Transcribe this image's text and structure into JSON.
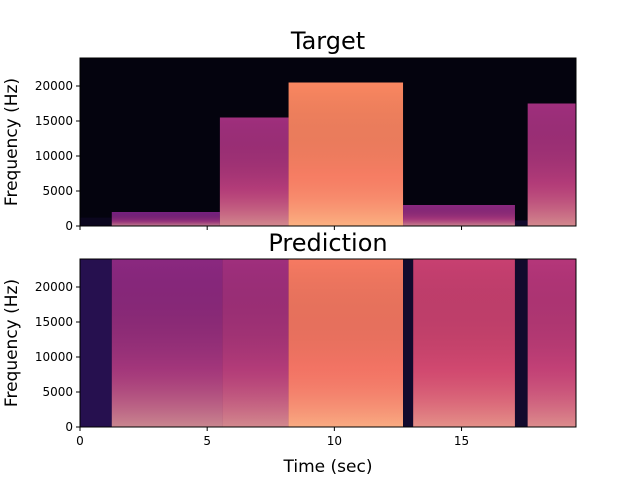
{
  "chart_data": [
    {
      "type": "heatmap",
      "title": "Target",
      "xlabel": "",
      "ylabel": "Frequency (Hz)",
      "xlim": [
        0,
        19.5
      ],
      "ylim": [
        0,
        24000
      ],
      "x_ticks": [
        0,
        5,
        10,
        15
      ],
      "x_tick_labels_shown": false,
      "y_ticks": [
        0,
        5000,
        10000,
        15000,
        20000
      ],
      "y_tick_labels": [
        "0",
        "5000",
        "10000",
        "15000",
        "20000"
      ],
      "colormap": "magma",
      "segments": [
        {
          "x0": 0.0,
          "x1": 1.25,
          "max_freq": 1200,
          "level": 0.05
        },
        {
          "x0": 1.25,
          "x1": 5.5,
          "max_freq": 2000,
          "level": 0.35
        },
        {
          "x0": 5.5,
          "x1": 8.2,
          "max_freq": 15500,
          "level": 0.45
        },
        {
          "x0": 8.2,
          "x1": 12.7,
          "max_freq": 20500,
          "level": 0.75
        },
        {
          "x0": 12.7,
          "x1": 17.1,
          "max_freq": 3000,
          "level": 0.4
        },
        {
          "x0": 17.1,
          "x1": 17.6,
          "max_freq": 800,
          "level": 0.08
        },
        {
          "x0": 17.6,
          "x1": 19.5,
          "max_freq": 17500,
          "level": 0.45
        }
      ]
    },
    {
      "type": "heatmap",
      "title": "Prediction",
      "xlabel": "Time (sec)",
      "ylabel": "Frequency (Hz)",
      "xlim": [
        0,
        19.5
      ],
      "ylim": [
        0,
        24000
      ],
      "x_ticks": [
        0,
        5,
        10,
        15
      ],
      "x_tick_labels": [
        "0",
        "5",
        "10",
        "15"
      ],
      "y_ticks": [
        0,
        5000,
        10000,
        15000,
        20000
      ],
      "y_tick_labels": [
        "0",
        "5000",
        "10000",
        "15000",
        "20000"
      ],
      "colormap": "magma",
      "segments": [
        {
          "x0": 0.0,
          "x1": 1.25,
          "max_freq": 24000,
          "level": 0.15
        },
        {
          "x0": 1.25,
          "x1": 5.6,
          "max_freq": 24000,
          "level": 0.4
        },
        {
          "x0": 5.6,
          "x1": 8.2,
          "max_freq": 24000,
          "level": 0.45
        },
        {
          "x0": 8.2,
          "x1": 12.7,
          "max_freq": 24000,
          "level": 0.72
        },
        {
          "x0": 12.7,
          "x1": 13.1,
          "max_freq": 24000,
          "level": 0.08
        },
        {
          "x0": 13.1,
          "x1": 17.1,
          "max_freq": 24000,
          "level": 0.55
        },
        {
          "x0": 17.1,
          "x1": 17.6,
          "max_freq": 24000,
          "level": 0.08
        },
        {
          "x0": 17.6,
          "x1": 19.5,
          "max_freq": 24000,
          "level": 0.5
        }
      ]
    }
  ]
}
